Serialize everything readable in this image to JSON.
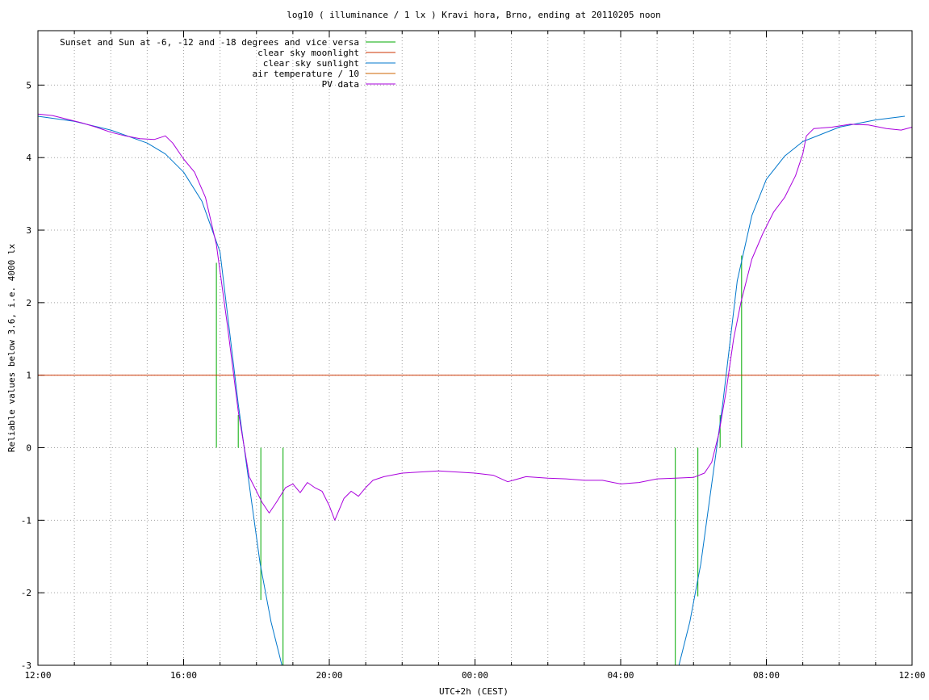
{
  "chart_data": {
    "type": "line",
    "title": "log10 ( illuminance / 1 lx ) Kravi hora, Brno, ending at 20110205 noon",
    "xlabel": "UTC+2h (CEST)",
    "ylabel": "Reliable values below 3.6, i.e. 4000 lx",
    "x_unit": "hours since 12:00",
    "xlim": [
      0,
      24
    ],
    "ylim": [
      -3,
      5.75
    ],
    "grid": true,
    "legend_position": "top-left",
    "x_ticks": [
      {
        "value": 0,
        "label": "12:00"
      },
      {
        "value": 4,
        "label": "16:00"
      },
      {
        "value": 8,
        "label": "20:00"
      },
      {
        "value": 12,
        "label": "00:00"
      },
      {
        "value": 16,
        "label": "04:00"
      },
      {
        "value": 20,
        "label": "08:00"
      },
      {
        "value": 24,
        "label": "12:00"
      }
    ],
    "y_ticks": [
      {
        "value": -3,
        "label": "-3"
      },
      {
        "value": -2,
        "label": "-2"
      },
      {
        "value": -1,
        "label": "-1"
      },
      {
        "value": 0,
        "label": "0"
      },
      {
        "value": 1,
        "label": "1"
      },
      {
        "value": 2,
        "label": "2"
      },
      {
        "value": 3,
        "label": "3"
      },
      {
        "value": 4,
        "label": "4"
      },
      {
        "value": 5,
        "label": "5"
      }
    ],
    "series": [
      {
        "name": "Sunset and Sun at -6, -12 and -18 degrees and vice versa",
        "color": "#00aa00",
        "style": "impulses",
        "points": [
          {
            "x": 4.9,
            "y": 2.55
          },
          {
            "x": 5.5,
            "y": 0.45
          },
          {
            "x": 6.12,
            "y": -2.1
          },
          {
            "x": 6.73,
            "y": -3.0
          },
          {
            "x": 17.5,
            "y": -3.0
          },
          {
            "x": 18.12,
            "y": -2.05
          },
          {
            "x": 18.73,
            "y": 0.45
          },
          {
            "x": 19.32,
            "y": 2.65
          }
        ]
      },
      {
        "name": "clear sky moonlight",
        "color": "#cc3300",
        "style": "line",
        "points": [
          {
            "x": 0,
            "y": 1
          },
          {
            "x": 23.1,
            "y": 1
          }
        ]
      },
      {
        "name": "clear sky sunlight",
        "color": "#0077cc",
        "style": "line",
        "points": [
          {
            "x": 0,
            "y": 4.57
          },
          {
            "x": 1,
            "y": 4.5
          },
          {
            "x": 2,
            "y": 4.38
          },
          {
            "x": 3,
            "y": 4.2
          },
          {
            "x": 3.5,
            "y": 4.05
          },
          {
            "x": 4,
            "y": 3.8
          },
          {
            "x": 4.5,
            "y": 3.4
          },
          {
            "x": 5,
            "y": 2.7
          },
          {
            "x": 5.5,
            "y": 0.6
          },
          {
            "x": 5.8,
            "y": -0.5
          },
          {
            "x": 6.1,
            "y": -1.6
          },
          {
            "x": 6.4,
            "y": -2.4
          },
          {
            "x": 6.7,
            "y": -3.0
          },
          {
            "x": 17.6,
            "y": -3.0
          },
          {
            "x": 17.9,
            "y": -2.4
          },
          {
            "x": 18.2,
            "y": -1.6
          },
          {
            "x": 18.5,
            "y": -0.5
          },
          {
            "x": 18.8,
            "y": 0.6
          },
          {
            "x": 19.2,
            "y": 2.3
          },
          {
            "x": 19.6,
            "y": 3.2
          },
          {
            "x": 20,
            "y": 3.7
          },
          {
            "x": 20.5,
            "y": 4.02
          },
          {
            "x": 21,
            "y": 4.22
          },
          {
            "x": 22,
            "y": 4.42
          },
          {
            "x": 23,
            "y": 4.52
          },
          {
            "x": 23.8,
            "y": 4.57
          }
        ]
      },
      {
        "name": "air temperature / 10",
        "color": "#cc6600",
        "style": "line",
        "points": []
      },
      {
        "name": "PV data",
        "color": "#aa00dd",
        "style": "line",
        "points": [
          {
            "x": 0,
            "y": 4.6
          },
          {
            "x": 0.4,
            "y": 4.58
          },
          {
            "x": 0.8,
            "y": 4.53
          },
          {
            "x": 1.2,
            "y": 4.48
          },
          {
            "x": 1.6,
            "y": 4.42
          },
          {
            "x": 2.0,
            "y": 4.35
          },
          {
            "x": 2.4,
            "y": 4.3
          },
          {
            "x": 2.8,
            "y": 4.26
          },
          {
            "x": 3.2,
            "y": 4.25
          },
          {
            "x": 3.5,
            "y": 4.3
          },
          {
            "x": 3.7,
            "y": 4.2
          },
          {
            "x": 4.0,
            "y": 3.98
          },
          {
            "x": 4.3,
            "y": 3.8
          },
          {
            "x": 4.6,
            "y": 3.45
          },
          {
            "x": 4.9,
            "y": 2.8
          },
          {
            "x": 5.2,
            "y": 1.7
          },
          {
            "x": 5.5,
            "y": 0.5
          },
          {
            "x": 5.8,
            "y": -0.4
          },
          {
            "x": 6.0,
            "y": -0.6
          },
          {
            "x": 6.15,
            "y": -0.75
          },
          {
            "x": 6.35,
            "y": -0.9
          },
          {
            "x": 6.55,
            "y": -0.75
          },
          {
            "x": 6.8,
            "y": -0.55
          },
          {
            "x": 7.0,
            "y": -0.5
          },
          {
            "x": 7.2,
            "y": -0.62
          },
          {
            "x": 7.4,
            "y": -0.48
          },
          {
            "x": 7.6,
            "y": -0.55
          },
          {
            "x": 7.8,
            "y": -0.6
          },
          {
            "x": 8.0,
            "y": -0.8
          },
          {
            "x": 8.15,
            "y": -1.0
          },
          {
            "x": 8.4,
            "y": -0.7
          },
          {
            "x": 8.6,
            "y": -0.6
          },
          {
            "x": 8.8,
            "y": -0.67
          },
          {
            "x": 9.0,
            "y": -0.55
          },
          {
            "x": 9.2,
            "y": -0.45
          },
          {
            "x": 9.5,
            "y": -0.4
          },
          {
            "x": 10.0,
            "y": -0.35
          },
          {
            "x": 11.0,
            "y": -0.32
          },
          {
            "x": 12.0,
            "y": -0.35
          },
          {
            "x": 12.5,
            "y": -0.38
          },
          {
            "x": 12.9,
            "y": -0.47
          },
          {
            "x": 13.4,
            "y": -0.4
          },
          {
            "x": 14.0,
            "y": -0.42
          },
          {
            "x": 14.5,
            "y": -0.43
          },
          {
            "x": 15.0,
            "y": -0.45
          },
          {
            "x": 15.5,
            "y": -0.45
          },
          {
            "x": 16.0,
            "y": -0.5
          },
          {
            "x": 16.5,
            "y": -0.48
          },
          {
            "x": 17.0,
            "y": -0.43
          },
          {
            "x": 17.5,
            "y": -0.42
          },
          {
            "x": 18.0,
            "y": -0.41
          },
          {
            "x": 18.3,
            "y": -0.35
          },
          {
            "x": 18.5,
            "y": -0.2
          },
          {
            "x": 18.7,
            "y": 0.2
          },
          {
            "x": 18.9,
            "y": 0.8
          },
          {
            "x": 19.1,
            "y": 1.5
          },
          {
            "x": 19.3,
            "y": 2.0
          },
          {
            "x": 19.6,
            "y": 2.6
          },
          {
            "x": 19.9,
            "y": 2.95
          },
          {
            "x": 20.2,
            "y": 3.25
          },
          {
            "x": 20.5,
            "y": 3.45
          },
          {
            "x": 20.8,
            "y": 3.75
          },
          {
            "x": 21.0,
            "y": 4.05
          },
          {
            "x": 21.1,
            "y": 4.3
          },
          {
            "x": 21.3,
            "y": 4.4
          },
          {
            "x": 21.8,
            "y": 4.42
          },
          {
            "x": 22.3,
            "y": 4.46
          },
          {
            "x": 22.8,
            "y": 4.45
          },
          {
            "x": 23.3,
            "y": 4.4
          },
          {
            "x": 23.7,
            "y": 4.38
          },
          {
            "x": 24.0,
            "y": 4.42
          }
        ]
      }
    ]
  }
}
